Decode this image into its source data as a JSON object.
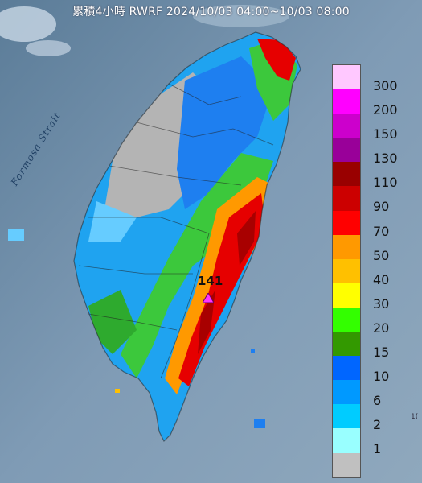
{
  "title": "累積4小時 RWRF 2024/10/03 04:00~10/03 08:00",
  "strait_label": "Formosa Strait",
  "station_label": "141",
  "legend": [
    {
      "label": "300",
      "color": "#ffc8ff"
    },
    {
      "label": "200",
      "color": "#ff00ff"
    },
    {
      "label": "150",
      "color": "#cc00cc"
    },
    {
      "label": "130",
      "color": "#990099"
    },
    {
      "label": "110",
      "color": "#990000"
    },
    {
      "label": "90",
      "color": "#cc0000"
    },
    {
      "label": "70",
      "color": "#ff0000"
    },
    {
      "label": "50",
      "color": "#ff9900"
    },
    {
      "label": "40",
      "color": "#ffc000"
    },
    {
      "label": "30",
      "color": "#ffff00"
    },
    {
      "label": "20",
      "color": "#33ff00"
    },
    {
      "label": "15",
      "color": "#339900"
    },
    {
      "label": "10",
      "color": "#0066ff"
    },
    {
      "label": "6",
      "color": "#0099ff"
    },
    {
      "label": "2",
      "color": "#00ccff"
    },
    {
      "label": "1",
      "color": "#99ffff"
    },
    {
      "label": "",
      "color": "#c0c0c0"
    }
  ],
  "edge_label": "1("
}
